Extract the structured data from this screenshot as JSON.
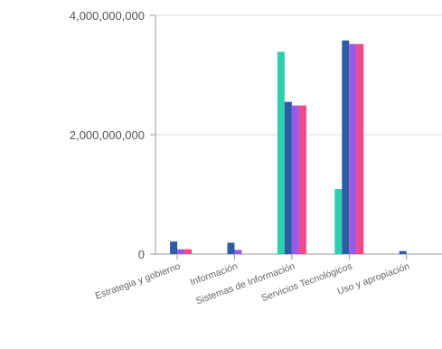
{
  "chart_data": {
    "type": "bar",
    "title": "",
    "xlabel": "",
    "ylabel": "",
    "ylim": [
      0,
      4000000000
    ],
    "yticks": [
      {
        "value": 0,
        "label": "0"
      },
      {
        "value": 2000000000,
        "label": "2,000,000,000"
      },
      {
        "value": 4000000000,
        "label": "4,000,000,000"
      }
    ],
    "grid": true,
    "legend": "none",
    "categories": [
      "Estrategia y gobierno",
      "Información",
      "Sistemas de Información",
      "Servicios Tecnológicos",
      "Uso y apropiación"
    ],
    "series": [
      {
        "color": "#2ecfae",
        "values": [
          0,
          0,
          3390000000,
          1090000000,
          0
        ]
      },
      {
        "color": "#2e5ba6",
        "values": [
          210000000,
          190000000,
          2550000000,
          3580000000,
          50000000
        ]
      },
      {
        "color": "#9b59e6",
        "values": [
          80000000,
          70000000,
          2490000000,
          3520000000,
          0
        ]
      },
      {
        "color": "#f0498a",
        "values": [
          80000000,
          0,
          2490000000,
          3520000000,
          0
        ]
      }
    ]
  }
}
